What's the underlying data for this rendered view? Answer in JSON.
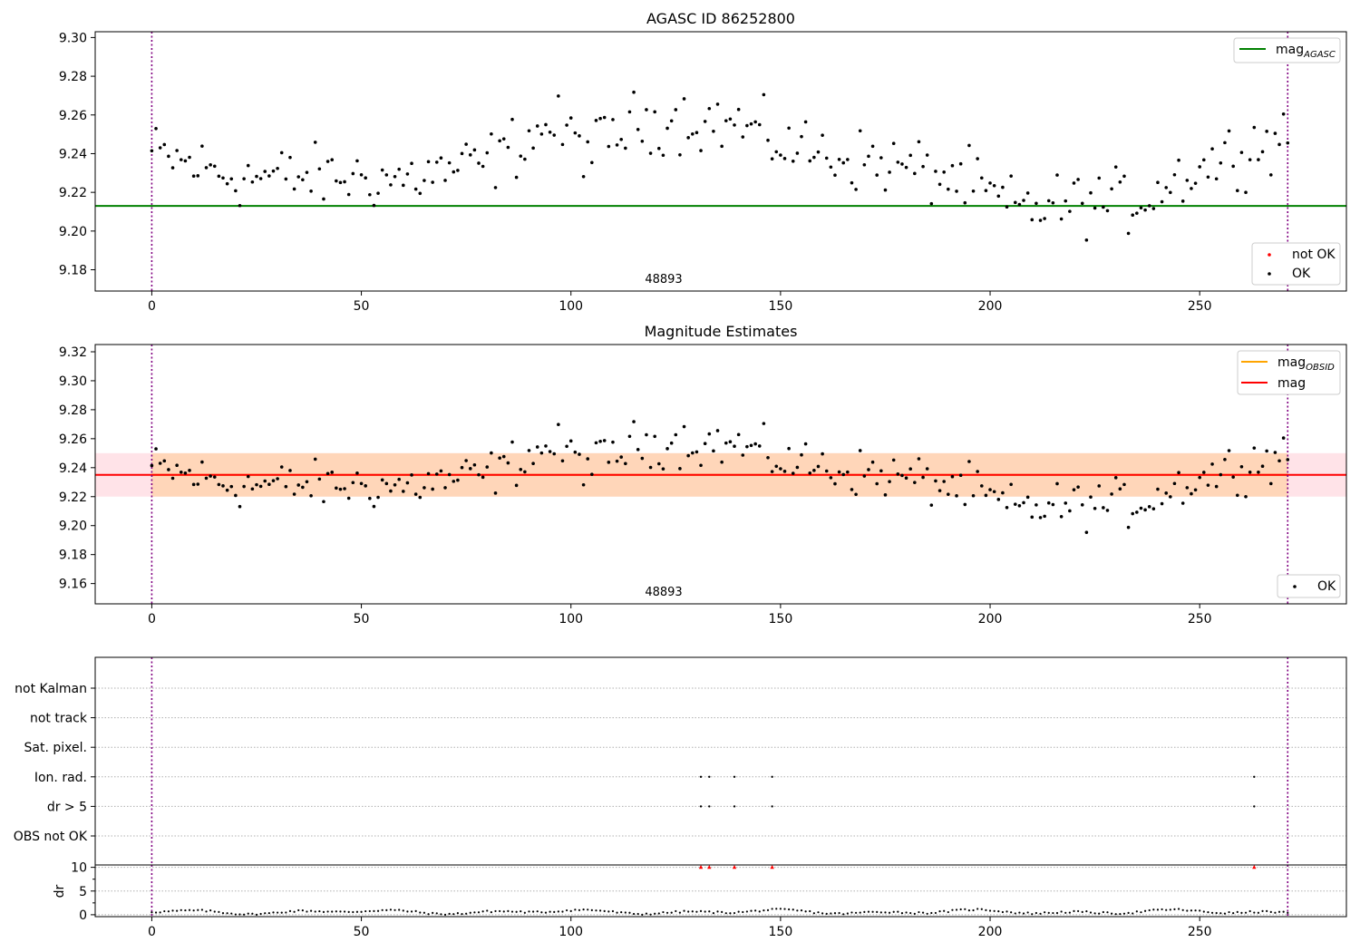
{
  "chart_data": [
    {
      "type": "scatter",
      "title": "AGASC ID 86252800",
      "obsid_label": "48893",
      "xlim": [
        -13.5,
        285
      ],
      "ylim": [
        9.169,
        9.303
      ],
      "xticks": [
        0,
        50,
        100,
        150,
        200,
        250,
        300
      ],
      "yticks": [
        9.18,
        9.2,
        9.22,
        9.24,
        9.26,
        9.28,
        9.3
      ],
      "ytick_labels": [
        "9.18",
        "9.20",
        "9.22",
        "9.24",
        "9.26",
        "9.28",
        "9.30"
      ],
      "obs_boundaries": [
        0,
        271
      ],
      "mag_agasc": 9.213,
      "mag_agasc_x_range": [
        -13.5,
        285
      ],
      "legend_top": [
        {
          "label_main": "mag",
          "label_sub": "AGASC",
          "color": "#008000"
        }
      ],
      "legend_bottom": [
        {
          "label": "not OK",
          "color": "#ff0000"
        },
        {
          "label": "OK",
          "color": "#000000"
        }
      ],
      "series": [
        {
          "name": "OK",
          "color": "#000000"
        }
      ]
    },
    {
      "type": "scatter",
      "title": "Magnitude Estimates",
      "obsid_label": "48893",
      "xlim": [
        -13.5,
        285
      ],
      "ylim": [
        9.146,
        9.325
      ],
      "xticks": [
        0,
        50,
        100,
        150,
        200,
        250,
        300
      ],
      "yticks": [
        9.16,
        9.18,
        9.2,
        9.22,
        9.24,
        9.26,
        9.28,
        9.3,
        9.32
      ],
      "ytick_labels": [
        "9.16",
        "9.18",
        "9.20",
        "9.22",
        "9.24",
        "9.26",
        "9.28",
        "9.30",
        "9.32"
      ],
      "obs_boundaries": [
        0,
        271
      ],
      "mag_obsid": 9.235,
      "mag": 9.235,
      "band_obsid": [
        9.22,
        9.25
      ],
      "band_mag": [
        9.22,
        9.25
      ],
      "legend_top": [
        {
          "label_main": "mag",
          "label_sub": "OBSID",
          "color": "#ffa500"
        },
        {
          "label_main": "mag",
          "label_sub": "",
          "color": "#ff0000"
        }
      ],
      "legend_bottom": [
        {
          "label": "OK",
          "color": "#000000"
        }
      ],
      "series": [
        {
          "name": "OK",
          "color": "#000000"
        }
      ]
    },
    {
      "type": "scatter",
      "flag_rows": [
        "not Kalman",
        "not track",
        "Sat. pixel.",
        "Ion. rad.",
        "dr > 5",
        "OBS not OK"
      ],
      "flag_points": {
        "Ion. rad.": [
          131,
          133,
          139,
          148,
          263
        ],
        "dr > 5": [
          131,
          133,
          139,
          148,
          263
        ]
      },
      "dr_ylabel": "dr",
      "dr_ylim": [
        -0.4,
        10.5
      ],
      "dr_yticks": [
        0,
        5,
        10
      ],
      "dr_ytick_labels": [
        "0",
        "5",
        "10"
      ],
      "dr_clipped_points": [
        131,
        133,
        139,
        148,
        263
      ],
      "dr_clipped_value": 10,
      "xlim": [
        -13.5,
        285
      ],
      "xticks": [
        0,
        50,
        100,
        150,
        200,
        250,
        300
      ],
      "obs_boundaries": [
        0,
        271
      ]
    }
  ],
  "colors": {
    "ok": "#000000",
    "not_ok": "#ff0000",
    "agasc": "#008000",
    "obsid": "#ffa500",
    "mag": "#ff0000",
    "band_mag": "#ffc0cb",
    "band_obsid": "#ffa500",
    "boundary": "#800080",
    "grid": "#b0b0b0"
  }
}
